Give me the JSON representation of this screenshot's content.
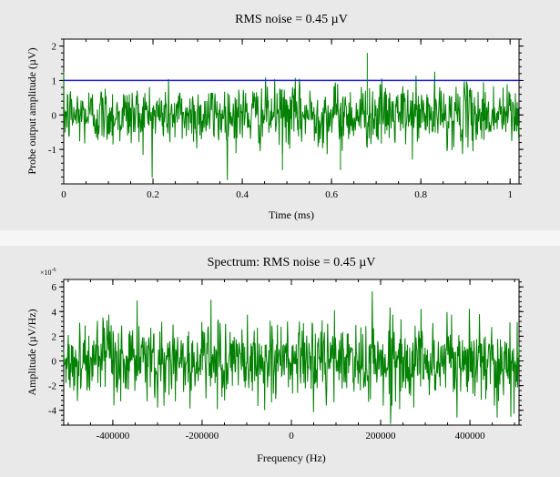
{
  "chart_data": [
    {
      "type": "line",
      "title": "RMS noise = 0.45 µV",
      "xlabel": "Time (ms)",
      "ylabel": "Probe output amplitude (µV)",
      "xlim": [
        0,
        1.02
      ],
      "ylim": [
        -2.0,
        2.2
      ],
      "xticks": [
        0,
        0.2,
        0.4,
        0.6,
        0.8,
        1
      ],
      "xtick_labels": [
        "0",
        "0.2",
        "0.4",
        "0.6",
        "0.8",
        "1"
      ],
      "yticks": [
        -1,
        0,
        1,
        2
      ],
      "ytick_labels": [
        "-1",
        "0",
        "1",
        "2"
      ],
      "grid": false,
      "series": [
        {
          "color": "#008000",
          "description": "noise trace, roughly Gaussian, mean 0, RMS 0.45",
          "rms": 0.45,
          "n_points": 1000,
          "x_range": [
            0,
            1.02
          ]
        },
        {
          "color": "#1a1adc",
          "description": "horizontal reference line",
          "y": 1.0
        }
      ],
      "annotations": {
        "spike_at_ms": 0.68,
        "spike_value": 1.8,
        "dips": [
          [
            0.49,
            -1.6
          ],
          [
            0.62,
            -1.6
          ]
        ]
      }
    },
    {
      "type": "line",
      "title": "Spectrum: RMS noise = 0.45 µV",
      "xlabel": "Frequency (Hz)",
      "ylabel": "Amplitude (µV/Hz)",
      "y_exponent_label": "×10",
      "y_exponent": "-6",
      "xlim": [
        -510000,
        510000
      ],
      "ylim": [
        -5.2,
        6.6
      ],
      "xticks": [
        -400000,
        -200000,
        0,
        200000,
        400000
      ],
      "xtick_labels": [
        "-400000",
        "-200000",
        "0",
        "200000",
        "400000"
      ],
      "yticks": [
        -4,
        -2,
        0,
        2,
        4,
        6
      ],
      "ytick_labels": [
        "-4",
        "-2",
        "0",
        "2",
        "4",
        "6"
      ],
      "grid": false,
      "series": [
        {
          "color": "#008000",
          "description": "spectrum noise trace around 0, amplitude about ±4 (×10^-6)",
          "scale": 1.6,
          "n_points": 1000
        }
      ]
    }
  ]
}
